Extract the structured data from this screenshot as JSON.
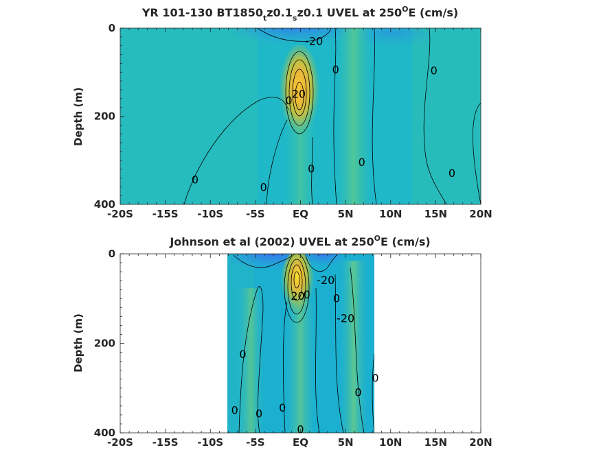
{
  "chart_data": [
    {
      "type": "heatmap",
      "title_main": "YR 101-130 BT1850",
      "title_sub1": "t",
      "title_mid": "z0.1",
      "title_sub2": "s",
      "title_end": "z0.1 UVEL at 250",
      "title_sup": "O",
      "title_tail": "E (cm/s)",
      "ylabel": "Depth (m)",
      "x_ticks": [
        -20,
        -15,
        -10,
        -5,
        0,
        5,
        10,
        15,
        20
      ],
      "x_tick_labels": [
        "-20S",
        "-15S",
        "-10S",
        "-5S",
        "EQ",
        "5N",
        "10N",
        "15N",
        "20N"
      ],
      "y_ticks": [
        0,
        200,
        400
      ],
      "y_tick_labels": [
        "0",
        "200",
        "400"
      ],
      "xlim": [
        -20,
        20
      ],
      "ylim": [
        0,
        400
      ],
      "data_xlim": [
        -20,
        20
      ],
      "contour_labels": [
        {
          "text": "-20",
          "x": 1.5,
          "y": 30
        },
        {
          "text": "0",
          "x": 3.9,
          "y": 95
        },
        {
          "text": "0",
          "x": 14.8,
          "y": 97
        },
        {
          "text": "20",
          "x": -0.2,
          "y": 150
        },
        {
          "text": "0",
          "x": -1.3,
          "y": 165
        },
        {
          "text": "0",
          "x": 1.2,
          "y": 320
        },
        {
          "text": "0",
          "x": 6.8,
          "y": 305
        },
        {
          "text": "0",
          "x": 16.8,
          "y": 330
        },
        {
          "text": "0",
          "x": -11.7,
          "y": 345
        },
        {
          "text": "0",
          "x": -4.1,
          "y": 362
        }
      ]
    },
    {
      "type": "heatmap",
      "title_main": "Johnson et al (2002) UVEL at 250",
      "title_sup": "O",
      "title_tail": "E (cm/s)",
      "ylabel": "Depth (m)",
      "x_ticks": [
        -20,
        -15,
        -10,
        -5,
        0,
        5,
        10,
        15,
        20
      ],
      "x_tick_labels": [
        "-20S",
        "-15S",
        "-10S",
        "-5S",
        "EQ",
        "5N",
        "10N",
        "15N",
        "20N"
      ],
      "y_ticks": [
        0,
        200,
        400
      ],
      "y_tick_labels": [
        "0",
        "200",
        "400"
      ],
      "xlim": [
        -20,
        20
      ],
      "ylim": [
        0,
        400
      ],
      "data_xlim": [
        -8,
        8.3
      ],
      "contour_labels": [
        {
          "text": "-20",
          "x": 2.8,
          "y": 60
        },
        {
          "text": "20",
          "x": -0.3,
          "y": 95
        },
        {
          "text": "0",
          "x": 0.7,
          "y": 92
        },
        {
          "text": "0",
          "x": 4.0,
          "y": 100
        },
        {
          "text": "-20",
          "x": 5.0,
          "y": 145
        },
        {
          "text": "0",
          "x": -6.4,
          "y": 225
        },
        {
          "text": "0",
          "x": 8.3,
          "y": 278
        },
        {
          "text": "0",
          "x": 6.4,
          "y": 310
        },
        {
          "text": "0",
          "x": -7.3,
          "y": 350
        },
        {
          "text": "0",
          "x": -4.6,
          "y": 358
        },
        {
          "text": "0",
          "x": -2.0,
          "y": 345
        },
        {
          "text": "0",
          "x": 0.0,
          "y": 393
        }
      ]
    }
  ]
}
